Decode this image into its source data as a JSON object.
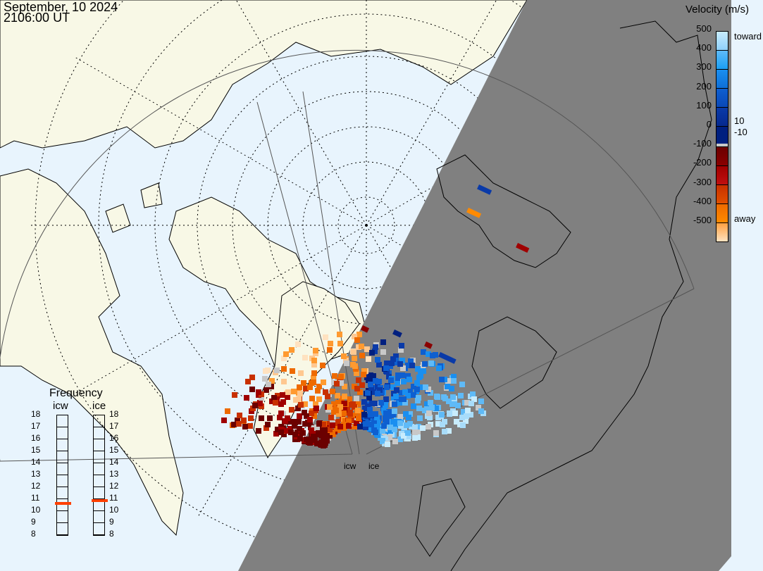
{
  "header": {
    "date": "September, 10 2024",
    "time": "2106:00 UT"
  },
  "colorbar": {
    "title": "Velocity (m/s)",
    "ticks": [
      "500",
      "400",
      "300",
      "200",
      "100",
      "0",
      "-100",
      "-200",
      "-300",
      "-400",
      "-500"
    ],
    "toward_label": "toward",
    "away_label": "away",
    "plus_label": "10",
    "minus_label": "-10",
    "toward_colors": [
      "#001f7f",
      "#0a3aa8",
      "#0e5fd0",
      "#1a8ff0",
      "#5fbaf7",
      "#c8ecfd"
    ],
    "away_colors": [
      "#6b0000",
      "#a00000",
      "#c83000",
      "#ee6a00",
      "#ff9a30",
      "#ffe2c0"
    ],
    "ground_scatter_color": "#c8c8c8"
  },
  "frequency": {
    "title": "Frequency",
    "radars": [
      {
        "name": "icw",
        "value_mhz": 10.6
      },
      {
        "name": "ice",
        "value_mhz": 10.8
      }
    ],
    "scale": [
      "18",
      "17",
      "16",
      "15",
      "14",
      "13",
      "12",
      "11",
      "10",
      "9",
      "8"
    ],
    "marker_color": "#ff4000"
  },
  "radar_labels": [
    "icw",
    "ice"
  ],
  "map_colors": {
    "ocean": "#e8f4fd",
    "land": "#f8f8e6",
    "night": "#808080"
  }
}
